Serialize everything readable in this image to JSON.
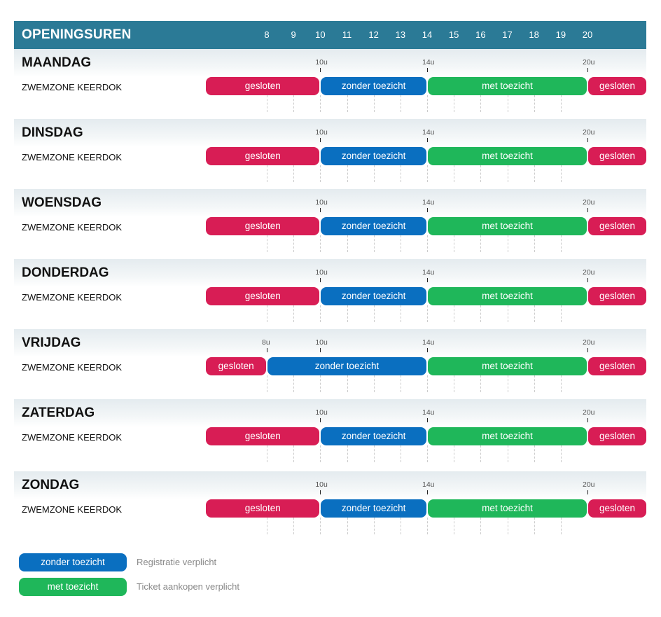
{
  "header": {
    "title": "OPENINGSUREN",
    "hours": [
      "8",
      "9",
      "10",
      "11",
      "12",
      "13",
      "14",
      "15",
      "16",
      "17",
      "18",
      "19",
      "20"
    ]
  },
  "colors": {
    "header": "#2b7a96",
    "gesloten": "#d81d55",
    "zonder_toezicht": "#0a6fc0",
    "met_toezicht": "#1fb75a"
  },
  "days": [
    {
      "name": "MAANDAG",
      "zone": "ZWEMZONE KEERDOK",
      "ticks": [
        {
          "label": "10u",
          "hour": 10
        },
        {
          "label": "14u",
          "hour": 14
        },
        {
          "label": "20u",
          "hour": 20
        }
      ],
      "segments": [
        {
          "label": "gesloten",
          "type": "gesloten",
          "start": 5.7,
          "end": 10
        },
        {
          "label": "zonder toezicht",
          "type": "zonder",
          "start": 10,
          "end": 14
        },
        {
          "label": "met toezicht",
          "type": "met",
          "start": 14,
          "end": 20
        },
        {
          "label": "gesloten",
          "type": "gesloten",
          "start": 20,
          "end": 22.3
        }
      ]
    },
    {
      "name": "DINSDAG",
      "zone": "ZWEMZONE KEERDOK",
      "ticks": [
        {
          "label": "10u",
          "hour": 10
        },
        {
          "label": "14u",
          "hour": 14
        },
        {
          "label": "20u",
          "hour": 20
        }
      ],
      "segments": [
        {
          "label": "gesloten",
          "type": "gesloten",
          "start": 5.7,
          "end": 10
        },
        {
          "label": "zonder toezicht",
          "type": "zonder",
          "start": 10,
          "end": 14
        },
        {
          "label": "met toezicht",
          "type": "met",
          "start": 14,
          "end": 20
        },
        {
          "label": "gesloten",
          "type": "gesloten",
          "start": 20,
          "end": 22.3
        }
      ]
    },
    {
      "name": "WOENSDAG",
      "zone": "ZWEMZONE KEERDOK",
      "ticks": [
        {
          "label": "10u",
          "hour": 10
        },
        {
          "label": "14u",
          "hour": 14
        },
        {
          "label": "20u",
          "hour": 20
        }
      ],
      "segments": [
        {
          "label": "gesloten",
          "type": "gesloten",
          "start": 5.7,
          "end": 10
        },
        {
          "label": "zonder toezicht",
          "type": "zonder",
          "start": 10,
          "end": 14
        },
        {
          "label": "met toezicht",
          "type": "met",
          "start": 14,
          "end": 20
        },
        {
          "label": "gesloten",
          "type": "gesloten",
          "start": 20,
          "end": 22.3
        }
      ]
    },
    {
      "name": "DONDERDAG",
      "zone": "ZWEMZONE KEERDOK",
      "ticks": [
        {
          "label": "10u",
          "hour": 10
        },
        {
          "label": "14u",
          "hour": 14
        },
        {
          "label": "20u",
          "hour": 20
        }
      ],
      "segments": [
        {
          "label": "gesloten",
          "type": "gesloten",
          "start": 5.7,
          "end": 10
        },
        {
          "label": "zonder toezicht",
          "type": "zonder",
          "start": 10,
          "end": 14
        },
        {
          "label": "met toezicht",
          "type": "met",
          "start": 14,
          "end": 20
        },
        {
          "label": "gesloten",
          "type": "gesloten",
          "start": 20,
          "end": 22.3
        }
      ]
    },
    {
      "name": "VRIJDAG",
      "zone": "ZWEMZONE KEERDOK",
      "ticks": [
        {
          "label": "8u",
          "hour": 8
        },
        {
          "label": "10u",
          "hour": 10
        },
        {
          "label": "14u",
          "hour": 14
        },
        {
          "label": "20u",
          "hour": 20
        }
      ],
      "segments": [
        {
          "label": "gesloten",
          "type": "gesloten",
          "start": 5.7,
          "end": 8
        },
        {
          "label": "zonder toezicht",
          "type": "zonder",
          "start": 8,
          "end": 14
        },
        {
          "label": "met toezicht",
          "type": "met",
          "start": 14,
          "end": 20
        },
        {
          "label": "gesloten",
          "type": "gesloten",
          "start": 20,
          "end": 22.3
        }
      ]
    },
    {
      "name": "ZATERDAG",
      "zone": "ZWEMZONE KEERDOK",
      "ticks": [
        {
          "label": "10u",
          "hour": 10
        },
        {
          "label": "14u",
          "hour": 14
        },
        {
          "label": "20u",
          "hour": 20
        }
      ],
      "segments": [
        {
          "label": "gesloten",
          "type": "gesloten",
          "start": 5.7,
          "end": 10
        },
        {
          "label": "zonder toezicht",
          "type": "zonder",
          "start": 10,
          "end": 14
        },
        {
          "label": "met toezicht",
          "type": "met",
          "start": 14,
          "end": 20
        },
        {
          "label": "gesloten",
          "type": "gesloten",
          "start": 20,
          "end": 22.3
        }
      ]
    },
    {
      "name": "ZONDAG",
      "zone": "ZWEMZONE KEERDOK",
      "ticks": [
        {
          "label": "10u",
          "hour": 10
        },
        {
          "label": "14u",
          "hour": 14
        },
        {
          "label": "20u",
          "hour": 20
        }
      ],
      "segments": [
        {
          "label": "gesloten",
          "type": "gesloten",
          "start": 5.7,
          "end": 10
        },
        {
          "label": "zonder toezicht",
          "type": "zonder",
          "start": 10,
          "end": 14
        },
        {
          "label": "met toezicht",
          "type": "met",
          "start": 14,
          "end": 20
        },
        {
          "label": "gesloten",
          "type": "gesloten",
          "start": 20,
          "end": 22.3
        }
      ]
    }
  ],
  "legend": [
    {
      "label": "zonder toezicht",
      "type": "zonder",
      "description": "Registratie verplicht"
    },
    {
      "label": "met toezicht",
      "type": "met",
      "description": "Ticket aankopen verplicht"
    }
  ]
}
